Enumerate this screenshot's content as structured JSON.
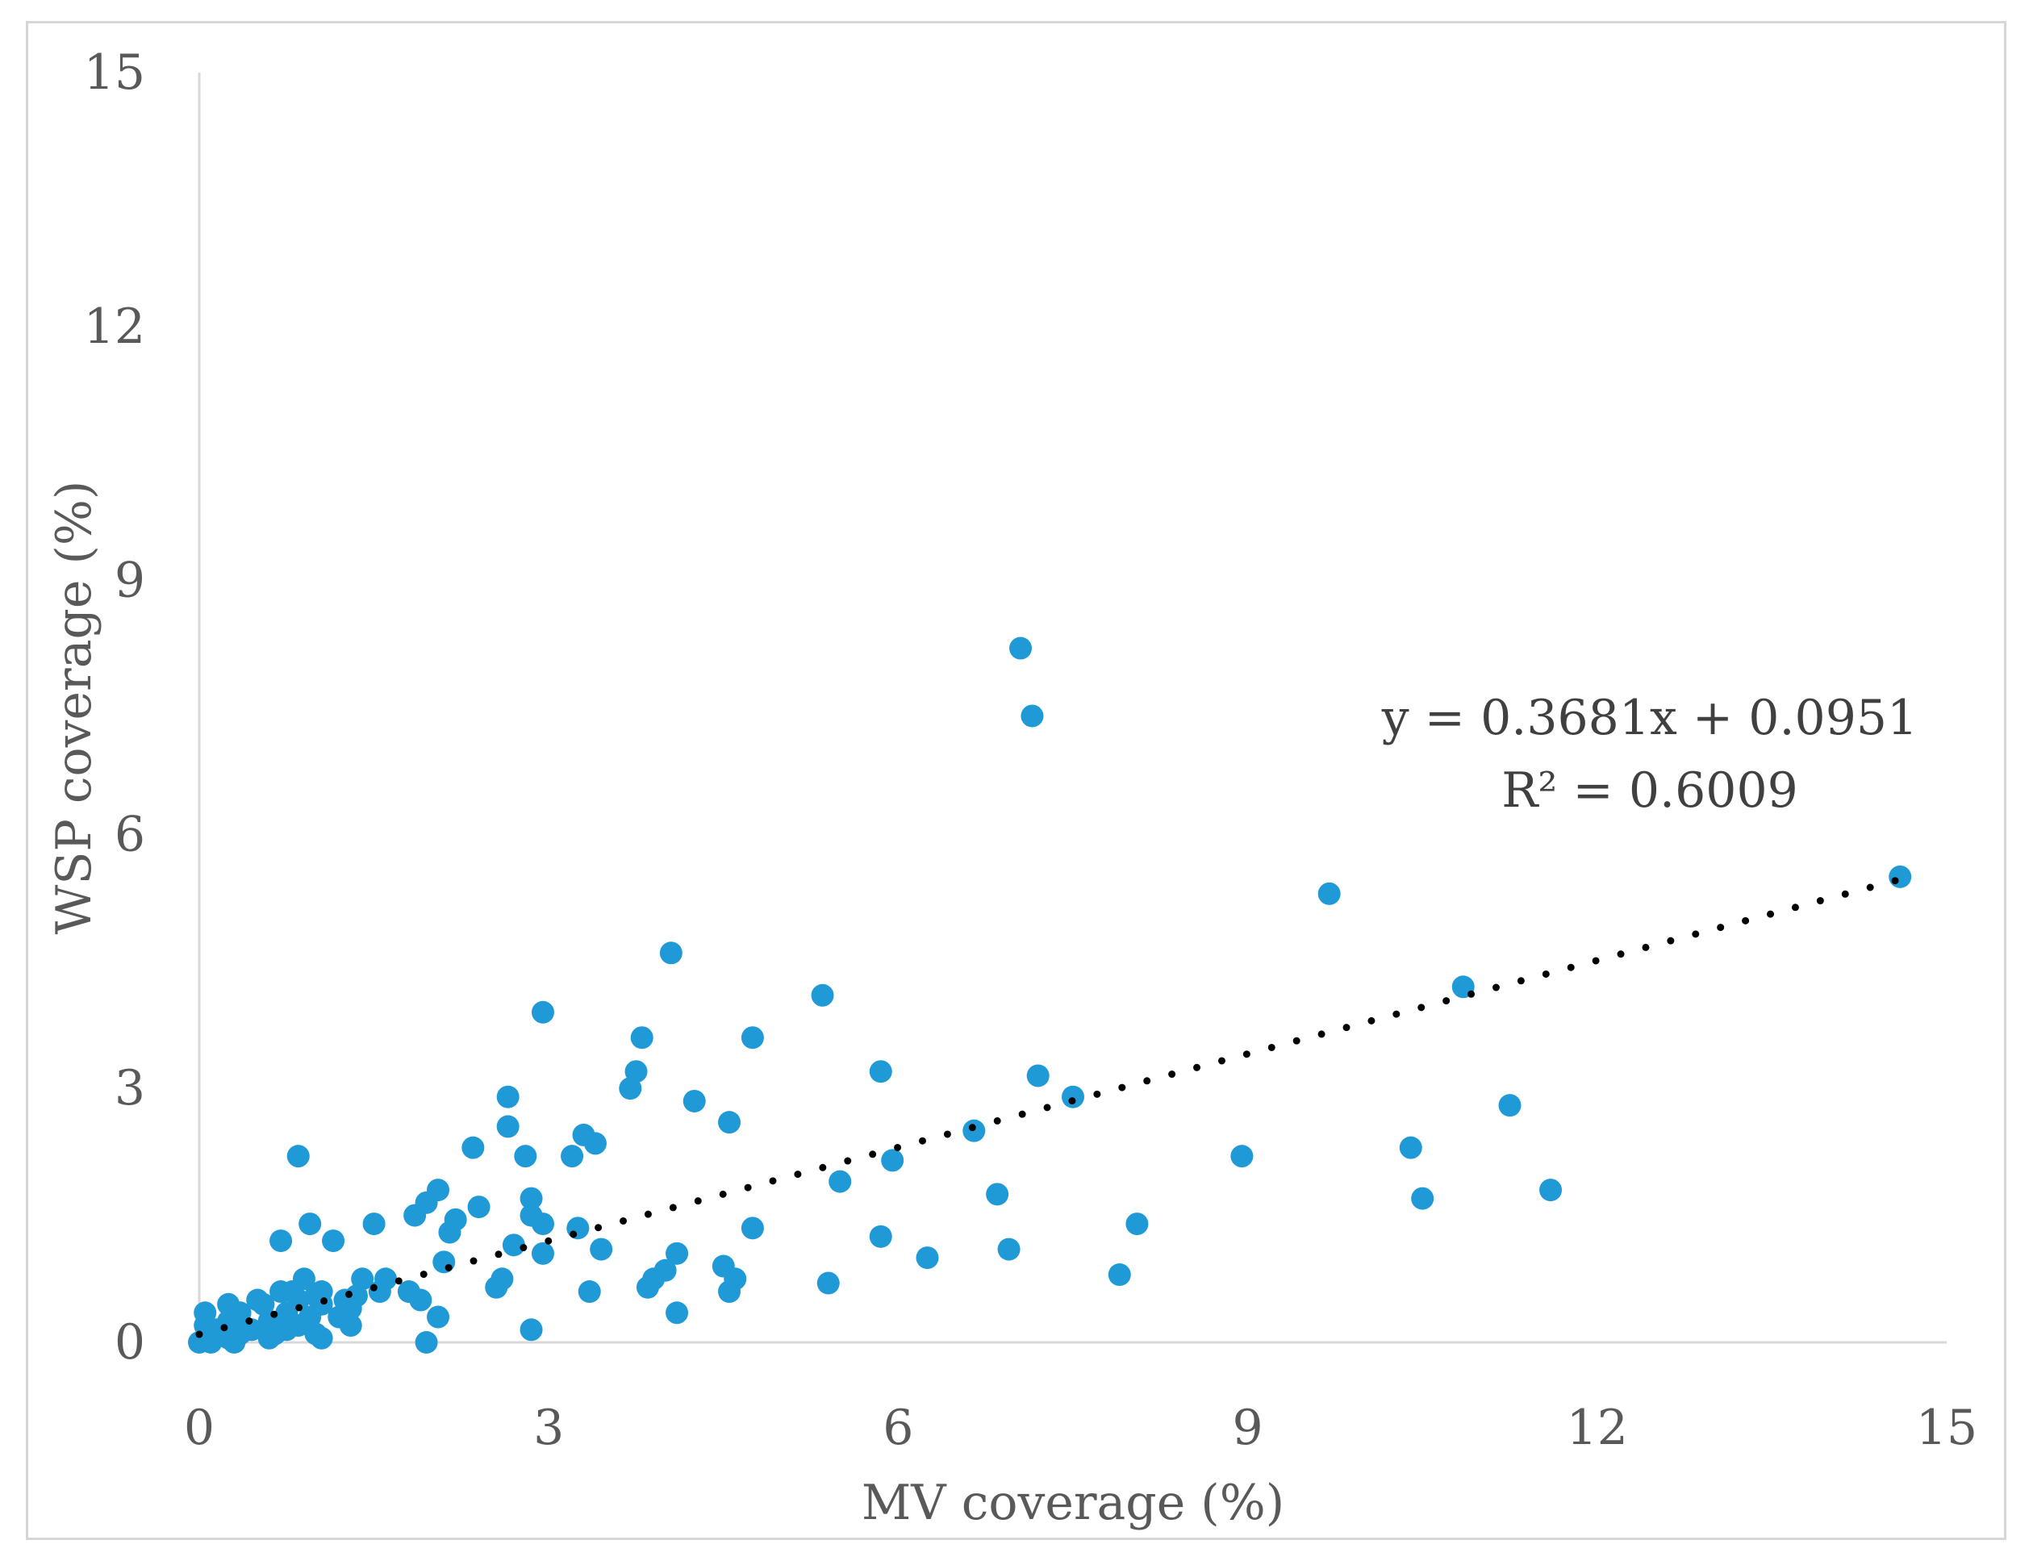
{
  "chart_data": {
    "type": "scatter",
    "title": "",
    "xlabel": "MV coverage  (%)",
    "ylabel": "WSP coverage  (%)",
    "xlim": [
      0,
      15
    ],
    "ylim": [
      0,
      15
    ],
    "xticks": [
      0,
      3,
      6,
      9,
      12,
      15
    ],
    "yticks": [
      0,
      3,
      6,
      9,
      12,
      15
    ],
    "xtick_labels": [
      "0",
      "3",
      "6",
      "9",
      "12",
      "15"
    ],
    "ytick_labels": [
      "0",
      "3",
      "6",
      "9",
      "12",
      "15"
    ],
    "grid": false,
    "point_color": "#1f9ad6",
    "trendline_color": "#000000",
    "trendline": {
      "type": "linear",
      "style": "dotted",
      "slope": 0.3681,
      "intercept": 0.0951,
      "x_range": [
        0,
        14.6
      ]
    },
    "annotations": {
      "equation": "y = 0.3681x + 0.0951",
      "r_squared": "R² = 0.6009"
    },
    "points": [
      [
        7.05,
        8.2
      ],
      [
        7.15,
        7.4
      ],
      [
        14.6,
        5.5
      ],
      [
        9.7,
        5.3
      ],
      [
        4.05,
        4.6
      ],
      [
        5.35,
        4.1
      ],
      [
        10.85,
        4.2
      ],
      [
        2.95,
        3.9
      ],
      [
        3.8,
        3.6
      ],
      [
        4.75,
        3.6
      ],
      [
        5.85,
        3.2
      ],
      [
        7.2,
        3.15
      ],
      [
        3.75,
        3.2
      ],
      [
        3.7,
        3.0
      ],
      [
        2.65,
        2.9
      ],
      [
        4.25,
        2.85
      ],
      [
        7.5,
        2.9
      ],
      [
        11.25,
        2.8
      ],
      [
        4.55,
        2.6
      ],
      [
        2.65,
        2.55
      ],
      [
        6.65,
        2.5
      ],
      [
        3.3,
        2.45
      ],
      [
        3.4,
        2.35
      ],
      [
        2.35,
        2.3
      ],
      [
        10.4,
        2.3
      ],
      [
        3.2,
        2.2
      ],
      [
        8.95,
        2.2
      ],
      [
        0.85,
        2.2
      ],
      [
        2.8,
        2.2
      ],
      [
        5.95,
        2.15
      ],
      [
        5.5,
        1.9
      ],
      [
        2.05,
        1.8
      ],
      [
        11.6,
        1.8
      ],
      [
        6.85,
        1.75
      ],
      [
        10.5,
        1.7
      ],
      [
        2.85,
        1.7
      ],
      [
        1.95,
        1.65
      ],
      [
        2.4,
        1.6
      ],
      [
        2.85,
        1.5
      ],
      [
        1.85,
        1.5
      ],
      [
        2.2,
        1.45
      ],
      [
        1.5,
        1.4
      ],
      [
        0.95,
        1.4
      ],
      [
        2.95,
        1.4
      ],
      [
        3.25,
        1.35
      ],
      [
        4.75,
        1.35
      ],
      [
        8.05,
        1.4
      ],
      [
        2.15,
        1.3
      ],
      [
        5.85,
        1.25
      ],
      [
        0.7,
        1.2
      ],
      [
        1.15,
        1.2
      ],
      [
        2.7,
        1.15
      ],
      [
        3.45,
        1.1
      ],
      [
        4.1,
        1.05
      ],
      [
        6.95,
        1.1
      ],
      [
        2.95,
        1.05
      ],
      [
        6.25,
        1.0
      ],
      [
        2.1,
        0.95
      ],
      [
        4.5,
        0.9
      ],
      [
        4.0,
        0.85
      ],
      [
        7.9,
        0.8
      ],
      [
        1.6,
        0.75
      ],
      [
        1.4,
        0.75
      ],
      [
        0.9,
        0.75
      ],
      [
        2.6,
        0.75
      ],
      [
        4.6,
        0.75
      ],
      [
        3.9,
        0.75
      ],
      [
        5.4,
        0.7
      ],
      [
        3.85,
        0.65
      ],
      [
        2.55,
        0.65
      ],
      [
        0.7,
        0.6
      ],
      [
        0.8,
        0.6
      ],
      [
        1.05,
        0.6
      ],
      [
        1.55,
        0.6
      ],
      [
        1.8,
        0.6
      ],
      [
        1.35,
        0.55
      ],
      [
        1.0,
        0.55
      ],
      [
        3.35,
        0.6
      ],
      [
        4.55,
        0.6
      ],
      [
        0.5,
        0.5
      ],
      [
        0.85,
        0.5
      ],
      [
        1.25,
        0.5
      ],
      [
        1.9,
        0.5
      ],
      [
        0.25,
        0.45
      ],
      [
        0.55,
        0.45
      ],
      [
        1.05,
        0.45
      ],
      [
        1.3,
        0.4
      ],
      [
        0.05,
        0.35
      ],
      [
        0.35,
        0.35
      ],
      [
        0.75,
        0.35
      ],
      [
        4.1,
        0.35
      ],
      [
        1.2,
        0.3
      ],
      [
        2.05,
        0.3
      ],
      [
        0.95,
        0.3
      ],
      [
        0.6,
        0.25
      ],
      [
        0.25,
        0.25
      ],
      [
        0.05,
        0.2
      ],
      [
        0.85,
        0.2
      ],
      [
        1.3,
        0.2
      ],
      [
        0.45,
        0.15
      ],
      [
        0.75,
        0.15
      ],
      [
        2.85,
        0.15
      ],
      [
        0.15,
        0.1
      ],
      [
        0.35,
        0.1
      ],
      [
        0.65,
        0.1
      ],
      [
        1.0,
        0.1
      ],
      [
        0.05,
        0.05
      ],
      [
        0.25,
        0.05
      ],
      [
        1.05,
        0.05
      ],
      [
        0.0,
        0.0
      ],
      [
        0.1,
        0.0
      ],
      [
        0.3,
        0.0
      ],
      [
        1.95,
        0.0
      ],
      [
        0.15,
        0.15
      ],
      [
        0.6,
        0.05
      ]
    ]
  }
}
